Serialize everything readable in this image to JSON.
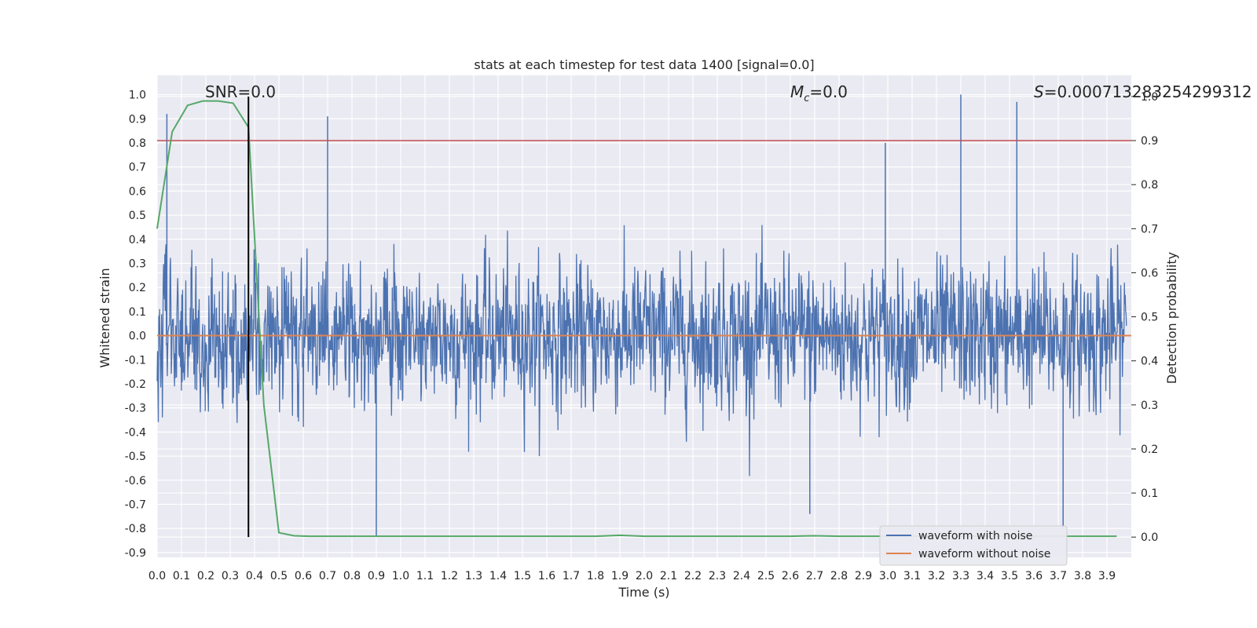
{
  "chart_data": {
    "type": "line",
    "title": "stats at each timestep for test data 1400 [signal=0.0]",
    "xlabel": "Time (s)",
    "ylabel_left": "Whitened strain",
    "ylabel_right": "Detection probability",
    "xlim": [
      0.0,
      4.0
    ],
    "ylim_left": [
      -0.92,
      1.08
    ],
    "ylim_right": [
      -0.046,
      1.048
    ],
    "x_ticks": [
      "0.0",
      "0.1",
      "0.2",
      "0.3",
      "0.4",
      "0.5",
      "0.6",
      "0.7",
      "0.8",
      "0.9",
      "1.0",
      "1.1",
      "1.2",
      "1.3",
      "1.4",
      "1.5",
      "1.6",
      "1.7",
      "1.8",
      "1.9",
      "2.0",
      "2.1",
      "2.2",
      "2.3",
      "2.4",
      "2.5",
      "2.6",
      "2.7",
      "2.8",
      "2.9",
      "3.0",
      "3.1",
      "3.2",
      "3.3",
      "3.4",
      "3.5",
      "3.6",
      "3.7",
      "3.8",
      "3.9"
    ],
    "y_ticks_left": [
      "-0.9",
      "-0.8",
      "-0.7",
      "-0.6",
      "-0.5",
      "-0.4",
      "-0.3",
      "-0.2",
      "-0.1",
      "0.0",
      "0.1",
      "0.2",
      "0.3",
      "0.4",
      "0.5",
      "0.6",
      "0.7",
      "0.8",
      "0.9",
      "1.0"
    ],
    "y_ticks_right": [
      "0.0",
      "0.1",
      "0.2",
      "0.3",
      "0.4",
      "0.5",
      "0.6",
      "0.7",
      "0.8",
      "0.9",
      "1.0"
    ],
    "annotations": {
      "snr": "SNR=0.0",
      "mc": "=0.0",
      "mc_symbol": "M",
      "mc_sub": "c",
      "s_symbol": "S",
      "s_value": "=0.000713283254299312"
    },
    "threshold": {
      "right_axis_value": 0.9,
      "color": "#c44e52"
    },
    "marker_time": 0.375,
    "series": [
      {
        "name": "waveform with noise",
        "axis": "left",
        "color": "#4c72b0",
        "description_generated": "noise"
      },
      {
        "name": "waveform without noise",
        "axis": "left",
        "color": "#dd8452",
        "constant": 0.0
      },
      {
        "name": "detection probability",
        "axis": "right",
        "color": "#55a868",
        "x": [
          0.0,
          0.062,
          0.125,
          0.188,
          0.25,
          0.312,
          0.375,
          0.438,
          0.5,
          0.562,
          0.625,
          0.7,
          0.8,
          0.9,
          1.0,
          1.2,
          1.4,
          1.6,
          1.8,
          1.9,
          2.0,
          2.2,
          2.4,
          2.6,
          2.7,
          2.8,
          3.0,
          3.2,
          3.4,
          3.6,
          3.8,
          3.94
        ],
        "y": [
          0.7,
          0.92,
          0.98,
          0.99,
          0.99,
          0.985,
          0.93,
          0.3,
          0.01,
          0.003,
          0.002,
          0.002,
          0.002,
          0.002,
          0.002,
          0.002,
          0.002,
          0.002,
          0.002,
          0.004,
          0.002,
          0.002,
          0.002,
          0.002,
          0.003,
          0.002,
          0.002,
          0.002,
          0.002,
          0.002,
          0.002,
          0.002
        ]
      }
    ],
    "legend": {
      "placement": "lower-right",
      "entries": [
        {
          "label": "waveform with noise",
          "color": "#4c72b0"
        },
        {
          "label": "waveform without noise",
          "color": "#dd8452"
        }
      ]
    },
    "grid": true
  }
}
